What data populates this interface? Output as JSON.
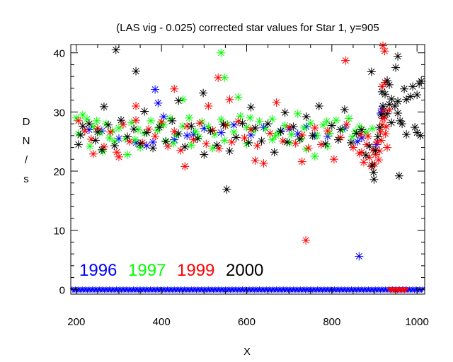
{
  "chart_data": {
    "type": "scatter",
    "title": "(LAS vig - 0.025) corrected star values for Star 1, y=905",
    "xlabel": "X",
    "ylabel": "D N / s",
    "ylabel_chars": [
      "D",
      "N",
      "/",
      "s"
    ],
    "xlim": [
      187,
      1018
    ],
    "ylim": [
      -0.8,
      41.4
    ],
    "xticks": [
      200,
      400,
      600,
      800,
      1000
    ],
    "xtick_labels": [
      "200",
      "400",
      "600",
      "800",
      "1000"
    ],
    "xminor_step": 50,
    "yticks": [
      0,
      10,
      20,
      30,
      40
    ],
    "ytick_labels": [
      "0",
      "10",
      "20",
      "30",
      "40"
    ],
    "yminor_step": 2,
    "grid": false,
    "marker": "asterisk",
    "legend_placement": "bottom-left",
    "series": [
      {
        "name": "1996",
        "color": "#0000ff",
        "points": [
          [
            385,
            33.8
          ],
          [
            392,
            31.5
          ],
          [
            405,
            29.2
          ],
          [
            380,
            24.9
          ],
          [
            430,
            25.3
          ],
          [
            460,
            26.0
          ],
          [
            500,
            27.2
          ],
          [
            540,
            26.5
          ],
          [
            570,
            27.8
          ],
          [
            610,
            26.1
          ],
          [
            640,
            27.4
          ],
          [
            680,
            26.8
          ],
          [
            700,
            27.1
          ],
          [
            720,
            26.3
          ],
          [
            740,
            27.5
          ],
          [
            760,
            26.0
          ],
          [
            790,
            25.9
          ],
          [
            830,
            27.3
          ],
          [
            860,
            25.0
          ],
          [
            870,
            25.6
          ],
          [
            905,
            24.5
          ],
          [
            915,
            29.8
          ],
          [
            918,
            30.5
          ],
          [
            340,
            24.8
          ],
          [
            300,
            25.5
          ],
          [
            260,
            26.8
          ],
          [
            230,
            27.0
          ],
          [
            475,
            26.2
          ],
          [
            365,
            24.3
          ],
          [
            864,
            5.6
          ]
        ],
        "zero_points_x_range": [
          190,
          1016
        ],
        "zero_points_y": 0
      },
      {
        "name": "1997",
        "color": "#00ff00",
        "points": [
          [
            540,
            40.0
          ],
          [
            548,
            35.8
          ],
          [
            450,
            32.1
          ],
          [
            580,
            32.5
          ],
          [
            200,
            29.0
          ],
          [
            215,
            29.5
          ],
          [
            225,
            28.8
          ],
          [
            240,
            27.5
          ],
          [
            255,
            26.5
          ],
          [
            270,
            28.0
          ],
          [
            285,
            26.8
          ],
          [
            300,
            27.3
          ],
          [
            315,
            25.5
          ],
          [
            330,
            28.2
          ],
          [
            345,
            27.0
          ],
          [
            360,
            26.4
          ],
          [
            375,
            28.5
          ],
          [
            390,
            26.9
          ],
          [
            405,
            27.8
          ],
          [
            420,
            28.9
          ],
          [
            435,
            26.1
          ],
          [
            450,
            27.6
          ],
          [
            465,
            29.0
          ],
          [
            480,
            26.7
          ],
          [
            495,
            28.3
          ],
          [
            510,
            27.5
          ],
          [
            525,
            26.2
          ],
          [
            540,
            28.7
          ],
          [
            555,
            27.9
          ],
          [
            570,
            26.6
          ],
          [
            585,
            29.3
          ],
          [
            600,
            27.4
          ],
          [
            615,
            26.8
          ],
          [
            630,
            28.4
          ],
          [
            645,
            27.1
          ],
          [
            660,
            28.8
          ],
          [
            675,
            26.5
          ],
          [
            690,
            27.7
          ],
          [
            705,
            26.2
          ],
          [
            720,
            29.7
          ],
          [
            735,
            27.3
          ],
          [
            750,
            28.1
          ],
          [
            765,
            26.0
          ],
          [
            780,
            27.8
          ],
          [
            795,
            26.4
          ],
          [
            810,
            28.6
          ],
          [
            825,
            27.0
          ],
          [
            840,
            28.9
          ],
          [
            855,
            26.7
          ],
          [
            865,
            27.5
          ],
          [
            232,
            24.2
          ],
          [
            262,
            23.3
          ],
          [
            290,
            25.0
          ],
          [
            320,
            22.8
          ],
          [
            350,
            24.0
          ],
          [
            410,
            25.1
          ],
          [
            470,
            24.4
          ],
          [
            520,
            23.9
          ],
          [
            600,
            24.6
          ],
          [
            660,
            25.3
          ],
          [
            700,
            24.8
          ],
          [
            740,
            23.7
          ],
          [
            760,
            22.5
          ],
          [
            790,
            24.2
          ],
          [
            205,
            26.3
          ],
          [
            248,
            28.5
          ],
          [
            278,
            25.6
          ],
          [
            338,
            25.3
          ],
          [
            398,
            28.0
          ],
          [
            428,
            24.7
          ],
          [
            488,
            25.8
          ],
          [
            548,
            25.2
          ],
          [
            608,
            29.0
          ],
          [
            668,
            26.0
          ],
          [
            728,
            25.5
          ],
          [
            788,
            28.4
          ],
          [
            848,
            25.8
          ],
          [
            880,
            26.6
          ],
          [
            895,
            27.2
          ]
        ]
      },
      {
        "name": "1999",
        "color": "#ff0000",
        "points": [
          [
            920,
            41.2
          ],
          [
            924,
            40.3
          ],
          [
            832,
            38.7
          ],
          [
            533,
            35.8
          ],
          [
            430,
            33.9
          ],
          [
            510,
            31.0
          ],
          [
            340,
            31.0
          ],
          [
            560,
            32.1
          ],
          [
            918,
            34.3
          ],
          [
            925,
            35.0
          ],
          [
            205,
            28.5
          ],
          [
            220,
            26.8
          ],
          [
            235,
            25.4
          ],
          [
            250,
            27.2
          ],
          [
            265,
            24.1
          ],
          [
            280,
            26.6
          ],
          [
            295,
            23.2
          ],
          [
            310,
            27.9
          ],
          [
            325,
            25.0
          ],
          [
            340,
            28.6
          ],
          [
            355,
            24.8
          ],
          [
            370,
            27.1
          ],
          [
            385,
            25.9
          ],
          [
            400,
            28.3
          ],
          [
            415,
            24.2
          ],
          [
            430,
            26.7
          ],
          [
            445,
            23.5
          ],
          [
            460,
            27.6
          ],
          [
            475,
            25.3
          ],
          [
            490,
            28.1
          ],
          [
            505,
            24.6
          ],
          [
            520,
            26.9
          ],
          [
            535,
            23.8
          ],
          [
            550,
            27.7
          ],
          [
            565,
            24.9
          ],
          [
            580,
            28.4
          ],
          [
            595,
            25.6
          ],
          [
            610,
            27.0
          ],
          [
            625,
            24.3
          ],
          [
            640,
            21.3
          ],
          [
            655,
            26.4
          ],
          [
            670,
            31.6
          ],
          [
            685,
            25.1
          ],
          [
            700,
            27.4
          ],
          [
            715,
            24.7
          ],
          [
            730,
            26.1
          ],
          [
            745,
            23.9
          ],
          [
            760,
            27.3
          ],
          [
            775,
            24.5
          ],
          [
            790,
            26.8
          ],
          [
            805,
            22.0
          ],
          [
            820,
            25.7
          ],
          [
            835,
            27.9
          ],
          [
            850,
            24.0
          ],
          [
            865,
            23.0
          ],
          [
            875,
            21.5
          ],
          [
            882,
            24.5
          ],
          [
            888,
            22.3
          ],
          [
            893,
            20.8
          ],
          [
            897,
            23.6
          ],
          [
            900,
            21.2
          ],
          [
            903,
            22.8
          ],
          [
            906,
            24.9
          ],
          [
            910,
            21.9
          ],
          [
            912,
            23.4
          ],
          [
            914,
            26.6
          ],
          [
            916,
            25.2
          ],
          [
            918,
            27.8
          ],
          [
            920,
            28.9
          ],
          [
            922,
            30.2
          ],
          [
            924,
            29.1
          ],
          [
            926,
            26.3
          ],
          [
            928,
            27.5
          ],
          [
            930,
            24.0
          ],
          [
            885,
            25.9
          ],
          [
            868,
            26.2
          ],
          [
            455,
            20.8
          ],
          [
            300,
            22.4
          ],
          [
            240,
            22.9
          ],
          [
            620,
            21.8
          ],
          [
            730,
            21.6
          ],
          [
            870,
            23.2
          ],
          [
            935,
            30.4
          ],
          [
            739,
            8.3
          ]
        ],
        "zero_points_x_range": [
          935,
          975
        ],
        "zero_points_y": 0
      },
      {
        "name": "2000",
        "color": "#000000",
        "points": [
          [
            293,
            40.5
          ],
          [
            340,
            36.9
          ],
          [
            955,
            39.4
          ],
          [
            950,
            37.5
          ],
          [
            893,
            36.8
          ],
          [
            498,
            33.2
          ],
          [
            265,
            30.9
          ],
          [
            440,
            31.9
          ],
          [
            930,
            35.3
          ],
          [
            935,
            34.6
          ],
          [
            970,
            33.9
          ],
          [
            990,
            34.3
          ],
          [
            1000,
            32.9
          ],
          [
            1005,
            34.8
          ],
          [
            1010,
            35.2
          ],
          [
            975,
            32.1
          ],
          [
            985,
            32.6
          ],
          [
            935,
            31.3
          ],
          [
            940,
            32.2
          ],
          [
            948,
            31.0
          ],
          [
            918,
            33.4
          ],
          [
            955,
            29.8
          ],
          [
            960,
            28.5
          ],
          [
            965,
            28.0
          ],
          [
            975,
            26.2
          ],
          [
            995,
            27.4
          ],
          [
            1000,
            26.5
          ],
          [
            1008,
            26.0
          ],
          [
            955,
            31.8
          ],
          [
            940,
            28.2
          ],
          [
            205,
            24.5
          ],
          [
            215,
            27.6
          ],
          [
            230,
            28.0
          ],
          [
            245,
            25.2
          ],
          [
            260,
            23.6
          ],
          [
            275,
            27.8
          ],
          [
            290,
            24.3
          ],
          [
            305,
            28.6
          ],
          [
            320,
            25.8
          ],
          [
            335,
            27.1
          ],
          [
            350,
            24.6
          ],
          [
            365,
            26.5
          ],
          [
            380,
            23.9
          ],
          [
            395,
            27.4
          ],
          [
            410,
            25.0
          ],
          [
            425,
            28.5
          ],
          [
            440,
            26.3
          ],
          [
            455,
            24.1
          ],
          [
            470,
            27.6
          ],
          [
            485,
            25.5
          ],
          [
            500,
            22.8
          ],
          [
            515,
            26.8
          ],
          [
            530,
            24.4
          ],
          [
            545,
            27.9
          ],
          [
            575,
            25.7
          ],
          [
            590,
            28.1
          ],
          [
            605,
            24.8
          ],
          [
            620,
            27.3
          ],
          [
            635,
            25.1
          ],
          [
            650,
            28.0
          ],
          [
            665,
            23.2
          ],
          [
            680,
            26.7
          ],
          [
            695,
            24.9
          ],
          [
            710,
            27.5
          ],
          [
            725,
            25.4
          ],
          [
            740,
            29.2
          ],
          [
            755,
            26.0
          ],
          [
            770,
            31.0
          ],
          [
            785,
            24.6
          ],
          [
            800,
            27.7
          ],
          [
            815,
            25.3
          ],
          [
            830,
            30.4
          ],
          [
            845,
            24.8
          ],
          [
            858,
            26.4
          ],
          [
            870,
            27.0
          ],
          [
            880,
            22.7
          ],
          [
            888,
            24.2
          ],
          [
            895,
            21.0
          ],
          [
            898,
            19.8
          ],
          [
            902,
            23.5
          ],
          [
            908,
            25.8
          ],
          [
            912,
            27.4
          ],
          [
            916,
            29.5
          ],
          [
            920,
            31.0
          ],
          [
            925,
            33.0
          ],
          [
            930,
            29.7
          ],
          [
            360,
            30.1
          ],
          [
            610,
            30.8
          ],
          [
            690,
            29.9
          ],
          [
            210,
            26.1
          ],
          [
            250,
            26.6
          ],
          [
            560,
            23.4
          ],
          [
            820,
            27.0
          ],
          [
            553,
            16.9
          ],
          [
            899,
            18.6
          ],
          [
            958,
            19.2
          ]
        ]
      }
    ]
  }
}
